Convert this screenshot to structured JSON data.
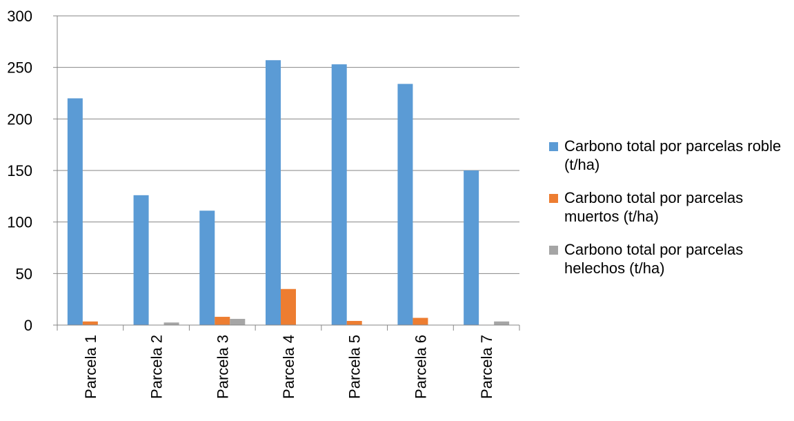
{
  "chart_data": {
    "type": "bar",
    "categories": [
      "Parcela 1",
      "Parcela 2",
      "Parcela 3",
      "Parcela 4",
      "Parcela 5",
      "Parcela 6",
      "Parcela 7"
    ],
    "series": [
      {
        "name": "Carbono total por parcelas roble (t/ha)",
        "color": "#5b9bd5",
        "values": [
          220,
          126,
          111,
          257,
          253,
          234,
          150
        ]
      },
      {
        "name": "Carbono total por parcelas muertos (t/ha)",
        "color": "#ed7d31",
        "values": [
          3.5,
          0,
          8,
          35,
          4,
          7,
          0
        ]
      },
      {
        "name": "Carbono total por parcelas helechos (t/ha)",
        "color": "#a5a5a5",
        "values": [
          0,
          2.5,
          6,
          0,
          0,
          0,
          3.5
        ]
      }
    ],
    "yticks": [
      "0",
      "50",
      "100",
      "150",
      "200",
      "250",
      "300"
    ],
    "ylim": [
      0,
      300
    ],
    "grid": true,
    "legend_position": "right"
  }
}
